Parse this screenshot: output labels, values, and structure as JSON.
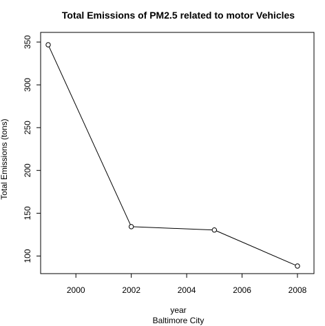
{
  "chart_data": {
    "type": "line",
    "title": "Total Emissions of PM2.5 related to motor Vehicles",
    "xlabel": "year",
    "subtitle": "Baltimore City",
    "ylabel": "Total Emissions (tons)",
    "x": [
      1999,
      2002,
      2005,
      2008
    ],
    "series": [
      {
        "values": [
          346.8,
          134.3,
          130.4,
          88.3
        ],
        "marker": "open-circle",
        "color": "#000000"
      }
    ],
    "xlim": [
      1999,
      2008
    ],
    "ylim": [
      88.3,
      346.8
    ],
    "x_ticks": [
      2000,
      2002,
      2004,
      2006,
      2008
    ],
    "x_tick_labels": [
      "2000",
      "2002",
      "2004",
      "2006",
      "2008"
    ],
    "y_ticks": [
      100,
      150,
      200,
      250,
      300,
      350
    ],
    "y_tick_labels": [
      "100",
      "150",
      "200",
      "250",
      "300",
      "350"
    ],
    "grid": false,
    "legend": "none"
  }
}
